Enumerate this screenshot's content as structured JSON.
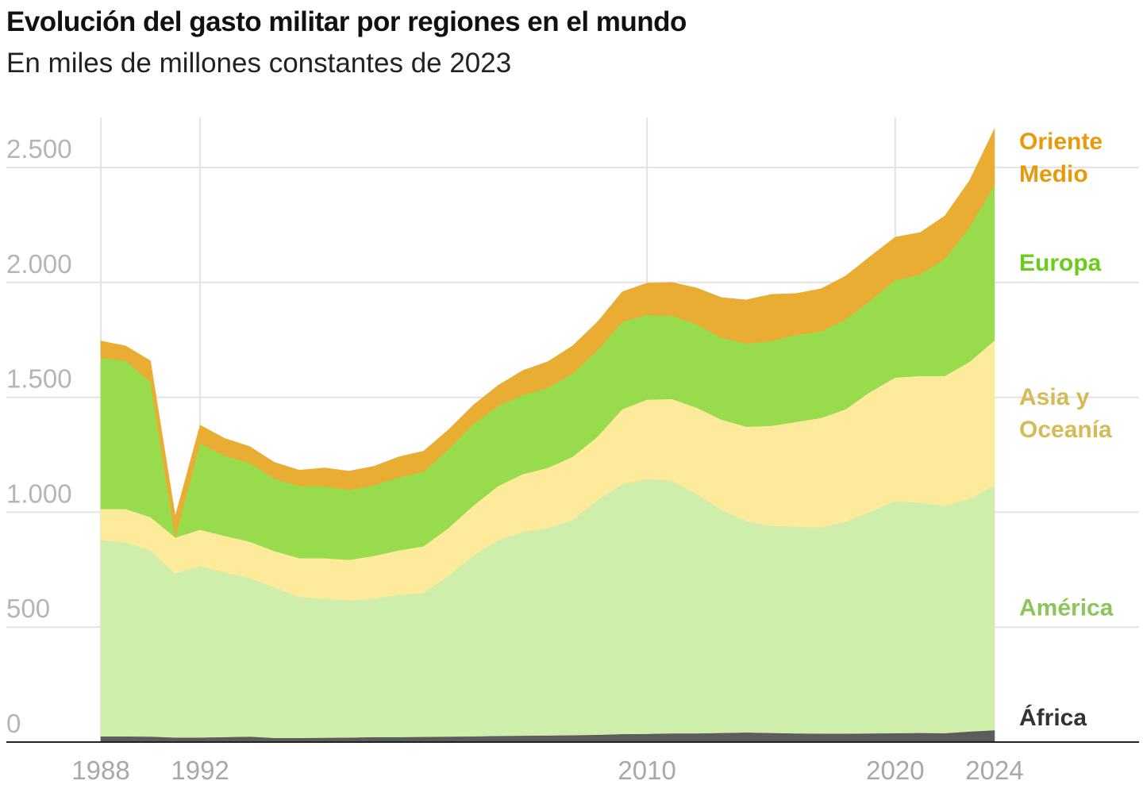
{
  "chart_data": {
    "type": "area",
    "stacked": true,
    "title": "Evolución del gasto militar por regiones en el mundo",
    "subtitle": "En miles de millones constantes de 2023",
    "xlabel": "",
    "ylabel": "",
    "x": [
      1988,
      1989,
      1990,
      1991,
      1992,
      1993,
      1994,
      1995,
      1996,
      1997,
      1998,
      1999,
      2000,
      2001,
      2002,
      2003,
      2004,
      2005,
      2006,
      2007,
      2008,
      2009,
      2010,
      2011,
      2012,
      2013,
      2014,
      2015,
      2016,
      2017,
      2018,
      2019,
      2020,
      2021,
      2022,
      2023,
      2024
    ],
    "xlim": [
      1988,
      2024
    ],
    "ylim": [
      0,
      2700
    ],
    "x_ticks": [
      {
        "value": 1988,
        "label": "1988"
      },
      {
        "value": 1992,
        "label": "1992"
      },
      {
        "value": 2010,
        "label": "2010"
      },
      {
        "value": 2020,
        "label": "2020"
      },
      {
        "value": 2024,
        "label": "2024"
      }
    ],
    "x_gridlines": [
      1992,
      2010,
      2020
    ],
    "y_ticks": [
      {
        "value": 0,
        "label": "0"
      },
      {
        "value": 500,
        "label": "500"
      },
      {
        "value": 1000,
        "label": "1.000"
      },
      {
        "value": 1500,
        "label": "1.500"
      },
      {
        "value": 2000,
        "label": "2.000"
      },
      {
        "value": 2500,
        "label": "2.500"
      }
    ],
    "grid": true,
    "legend": "right, direct labels",
    "series": [
      {
        "name": "África",
        "label_lines": [
          "África"
        ],
        "color": "#5c5c5c",
        "label_color": "#333333",
        "values": [
          25,
          25,
          24,
          20,
          20,
          22,
          24,
          18,
          18,
          19,
          20,
          22,
          22,
          23,
          24,
          25,
          27,
          28,
          29,
          30,
          32,
          35,
          36,
          38,
          38,
          40,
          42,
          40,
          38,
          37,
          37,
          38,
          39,
          40,
          39,
          46,
          52
        ]
      },
      {
        "name": "América",
        "label_lines": [
          "América"
        ],
        "color": "#cfeeab",
        "label_color": "#8cc55a",
        "values": [
          854,
          844,
          810,
          714,
          746,
          716,
          690,
          654,
          613,
          605,
          597,
          602,
          619,
          625,
          700,
          785,
          852,
          886,
          902,
          936,
          1020,
          1086,
          1109,
          1100,
          1041,
          970,
          920,
          901,
          900,
          897,
          922,
          965,
          1009,
          1001,
          989,
          1013,
          1065
        ]
      },
      {
        "name": "Asia y Oceanía",
        "label_lines": [
          "Asia y",
          "Oceanía"
        ],
        "color": "#fdea9a",
        "label_color": "#d4bb55",
        "values": [
          135,
          145,
          145,
          156,
          158,
          159,
          158,
          159,
          169,
          176,
          176,
          186,
          193,
          204,
          207,
          218,
          235,
          252,
          262,
          275,
          276,
          327,
          345,
          355,
          376,
          393,
          410,
          435,
          455,
          476,
          489,
          521,
          538,
          552,
          565,
          596,
          631
        ]
      },
      {
        "name": "Europa",
        "label_lines": [
          "Europa"
        ],
        "color": "#98dc4e",
        "label_color": "#6ccc1c",
        "values": [
          658,
          645,
          587,
          0,
          376,
          348,
          342,
          314,
          314,
          314,
          304,
          307,
          318,
          324,
          341,
          355,
          348,
          344,
          348,
          362,
          375,
          380,
          369,
          362,
          362,
          356,
          362,
          369,
          379,
          376,
          390,
          397,
          424,
          441,
          510,
          586,
          676
        ]
      },
      {
        "name": "Oriente Medio",
        "label_lines": [
          "Oriente",
          "Medio"
        ],
        "color": "#e9ad34",
        "label_color": "#e89a0a",
        "values": [
          73,
          65,
          93,
          93,
          79,
          76,
          72,
          72,
          69,
          79,
          82,
          83,
          89,
          90,
          87,
          83,
          90,
          107,
          114,
          121,
          125,
          131,
          138,
          145,
          159,
          175,
          190,
          203,
          180,
          186,
          190,
          193,
          187,
          183,
          187,
          204,
          245
        ]
      }
    ]
  }
}
